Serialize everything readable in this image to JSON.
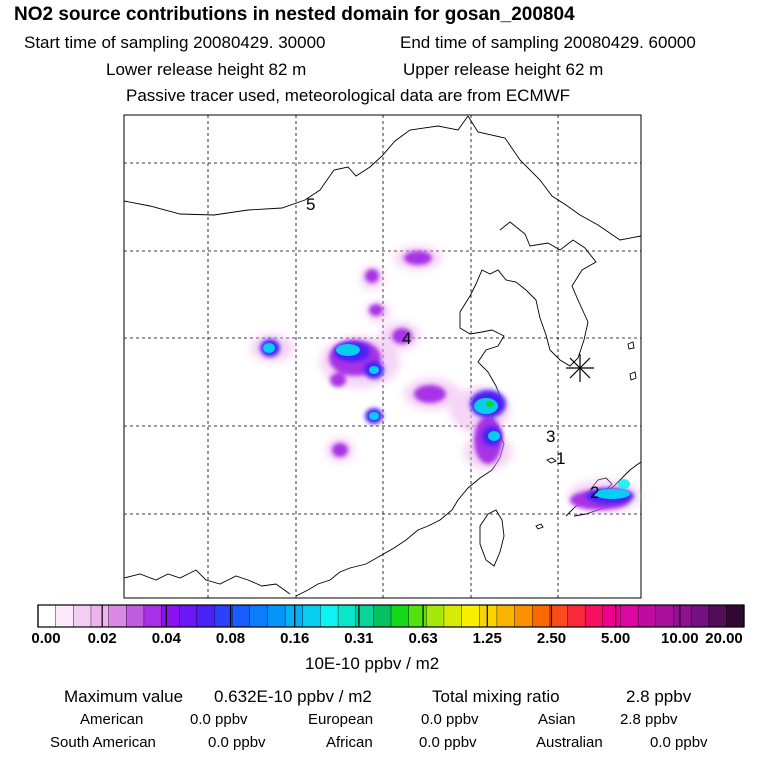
{
  "title": "NO2 source contributions in nested domain for gosan_200804",
  "sampling": {
    "start": "Start time of sampling 20080429. 30000",
    "end": "End time of sampling 20080429. 60000"
  },
  "release": {
    "lower": "Lower release height   82 m",
    "upper": "Upper release height   62 m"
  },
  "note": "Passive tracer used, meteorological data are from ECMWF",
  "map": {
    "markers": [
      "5",
      "4",
      "3",
      "1",
      "2"
    ]
  },
  "colorbar": {
    "ticks": [
      "0.00",
      "0.02",
      "0.04",
      "0.08",
      "0.16",
      "0.31",
      "0.63",
      "1.25",
      "2.50",
      "5.00",
      "10.00",
      "20.00"
    ],
    "units": "10E-10 ppbv / m2",
    "colors": [
      "#ffffff",
      "#fbe9fb",
      "#f4cdf4",
      "#eeb2ee",
      "#d98ae6",
      "#c15ee0",
      "#a830e6",
      "#8c10f0",
      "#6a18f5",
      "#4a22f8",
      "#2a40fa",
      "#1a5cfb",
      "#0b7dfb",
      "#0595f8",
      "#05b1f5",
      "#08cdf0",
      "#0ef2f2",
      "#0ae6c8",
      "#08d49a",
      "#08c060",
      "#14d818",
      "#56e010",
      "#a6e80c",
      "#d6ec08",
      "#f8f000",
      "#f8d400",
      "#f8b400",
      "#f89000",
      "#f86a00",
      "#f84c1c",
      "#f82a3a",
      "#f81060",
      "#f00090",
      "#dc06a0",
      "#c00aa0",
      "#a8109c",
      "#901090",
      "#741080",
      "#540c58",
      "#300830"
    ]
  },
  "stats": {
    "max_label": "Maximum value",
    "max_value": "0.632E-10 ppbv / m2",
    "total_label": "Total mixing ratio",
    "total_value": "2.8 ppbv"
  },
  "contributions": [
    {
      "region": "American",
      "value": "0.0 ppbv"
    },
    {
      "region": "European",
      "value": "0.0 ppbv"
    },
    {
      "region": "Asian",
      "value": "2.8 ppbv"
    },
    {
      "region": "South American",
      "value": "0.0 ppbv"
    },
    {
      "region": "African",
      "value": "0.0 ppbv"
    },
    {
      "region": "Australian",
      "value": "0.0 ppbv"
    }
  ]
}
